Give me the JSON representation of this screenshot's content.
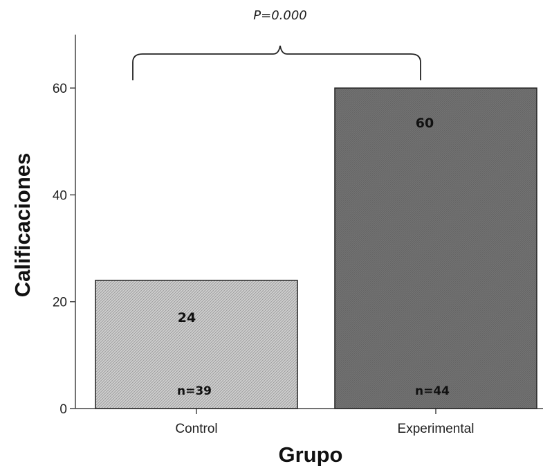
{
  "chart_data": {
    "type": "bar",
    "categories": [
      "Control",
      "Experimental"
    ],
    "values": [
      24,
      60
    ],
    "value_labels": [
      "24",
      "60"
    ],
    "n_labels": [
      "n=39",
      "n=44"
    ],
    "bar_colors": [
      "#cdcdcd",
      "#6e6e6e"
    ],
    "xlabel": "Grupo",
    "ylabel": "Calificaciones",
    "ylim": [
      0,
      70
    ],
    "yticks": [
      0,
      20,
      40,
      60
    ],
    "ytick_labels": [
      "0",
      "20",
      "40",
      "60"
    ],
    "grid": false,
    "legend": "none",
    "annotation": {
      "text": "P=0.000",
      "spans": [
        "Control",
        "Experimental"
      ]
    }
  }
}
